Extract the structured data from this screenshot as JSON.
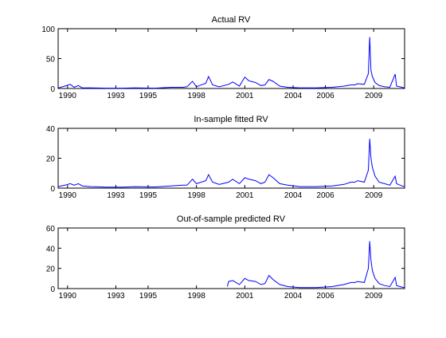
{
  "figure": {
    "background": "#ffffff"
  },
  "chart_data": [
    {
      "type": "line",
      "title": "Actual RV",
      "xlabel": "",
      "ylabel": "",
      "xlim": [
        "1989-06",
        "2010-12"
      ],
      "ylim": [
        0,
        100
      ],
      "yticks": [
        0,
        50,
        100
      ],
      "xticks": [
        "1990",
        "1993",
        "1995",
        "1998",
        "2001",
        "2004",
        "2006",
        "2009"
      ],
      "grid": false,
      "series": [
        {
          "color": "#0000ff",
          "points": [
            [
              "1989-06",
              1
            ],
            [
              "1989-11",
              4
            ],
            [
              "1990-03",
              7
            ],
            [
              "1990-06",
              2
            ],
            [
              "1990-09",
              5
            ],
            [
              "1990-12",
              1
            ],
            [
              "1991-06",
              1
            ],
            [
              "1992-06",
              0.5
            ],
            [
              "1993-06",
              0.5
            ],
            [
              "1994-03",
              1
            ],
            [
              "1995-06",
              0.5
            ],
            [
              "1996-06",
              2
            ],
            [
              "1997-03",
              2
            ],
            [
              "1997-06",
              3
            ],
            [
              "1997-10",
              12
            ],
            [
              "1998-01",
              3
            ],
            [
              "1998-08",
              9
            ],
            [
              "1998-10",
              20
            ],
            [
              "1999-01",
              6
            ],
            [
              "1999-06",
              3
            ],
            [
              "2000-01",
              7
            ],
            [
              "2000-04",
              11
            ],
            [
              "2000-09",
              4
            ],
            [
              "2001-01",
              19
            ],
            [
              "2001-04",
              13
            ],
            [
              "2001-09",
              10
            ],
            [
              "2002-01",
              5
            ],
            [
              "2002-04",
              6
            ],
            [
              "2002-07",
              15
            ],
            [
              "2002-10",
              12
            ],
            [
              "2003-03",
              4
            ],
            [
              "2003-09",
              2
            ],
            [
              "2004-06",
              1
            ],
            [
              "2005-06",
              1
            ],
            [
              "2006-06",
              2
            ],
            [
              "2007-03",
              4
            ],
            [
              "2007-08",
              6
            ],
            [
              "2007-11",
              6
            ],
            [
              "2008-01",
              8
            ],
            [
              "2008-06",
              7
            ],
            [
              "2008-09",
              25
            ],
            [
              "2008-10",
              86
            ],
            [
              "2008-11",
              30
            ],
            [
              "2008-12",
              20
            ],
            [
              "2009-02",
              10
            ],
            [
              "2009-05",
              5
            ],
            [
              "2009-09",
              3
            ],
            [
              "2010-01",
              2
            ],
            [
              "2010-05",
              24
            ],
            [
              "2010-06",
              4
            ],
            [
              "2010-10",
              2
            ],
            [
              "2010-12",
              1
            ]
          ]
        }
      ]
    },
    {
      "type": "line",
      "title": "In-sample fitted RV",
      "xlabel": "",
      "ylabel": "",
      "xlim": [
        "1989-06",
        "2010-12"
      ],
      "ylim": [
        0,
        40
      ],
      "yticks": [
        0,
        20,
        40
      ],
      "xticks": [
        "1990",
        "1993",
        "1995",
        "1998",
        "2001",
        "2004",
        "2006",
        "2009"
      ],
      "grid": false,
      "series": [
        {
          "color": "#0000ff",
          "points": [
            [
              "1989-06",
              1
            ],
            [
              "1989-11",
              2
            ],
            [
              "1990-03",
              3
            ],
            [
              "1990-06",
              2
            ],
            [
              "1990-09",
              3
            ],
            [
              "1990-12",
              1.5
            ],
            [
              "1991-06",
              1
            ],
            [
              "1992-06",
              0.7
            ],
            [
              "1993-06",
              0.7
            ],
            [
              "1994-03",
              1
            ],
            [
              "1995-06",
              0.8
            ],
            [
              "1996-06",
              1.5
            ],
            [
              "1997-03",
              2
            ],
            [
              "1997-06",
              2
            ],
            [
              "1997-10",
              6
            ],
            [
              "1998-01",
              3
            ],
            [
              "1998-08",
              5
            ],
            [
              "1998-10",
              9
            ],
            [
              "1999-01",
              4
            ],
            [
              "1999-06",
              2.5
            ],
            [
              "2000-01",
              4
            ],
            [
              "2000-04",
              6
            ],
            [
              "2000-09",
              3
            ],
            [
              "2001-01",
              7
            ],
            [
              "2001-04",
              6
            ],
            [
              "2001-09",
              5
            ],
            [
              "2002-01",
              3
            ],
            [
              "2002-04",
              4
            ],
            [
              "2002-07",
              9
            ],
            [
              "2002-10",
              7
            ],
            [
              "2003-03",
              3
            ],
            [
              "2003-09",
              2
            ],
            [
              "2004-06",
              1
            ],
            [
              "2005-06",
              1
            ],
            [
              "2006-06",
              1.5
            ],
            [
              "2007-03",
              2.5
            ],
            [
              "2007-08",
              4
            ],
            [
              "2007-11",
              4
            ],
            [
              "2008-01",
              5
            ],
            [
              "2008-06",
              4
            ],
            [
              "2008-09",
              12
            ],
            [
              "2008-10",
              33
            ],
            [
              "2008-11",
              20
            ],
            [
              "2008-12",
              14
            ],
            [
              "2009-02",
              8
            ],
            [
              "2009-05",
              4
            ],
            [
              "2009-09",
              3
            ],
            [
              "2010-01",
              2
            ],
            [
              "2010-05",
              8
            ],
            [
              "2010-06",
              3
            ],
            [
              "2010-10",
              1.5
            ],
            [
              "2010-12",
              1
            ]
          ]
        }
      ]
    },
    {
      "type": "line",
      "title": "Out-of-sample predicted RV",
      "xlabel": "",
      "ylabel": "",
      "xlim": [
        "1989-06",
        "2010-12"
      ],
      "ylim": [
        0,
        60
      ],
      "yticks": [
        0,
        20,
        40,
        60
      ],
      "xticks": [
        "1990",
        "1993",
        "1995",
        "1998",
        "2001",
        "2004",
        "2006",
        "2009"
      ],
      "grid": false,
      "series": [
        {
          "color": "#0000ff",
          "points": [
            [
              "1999-12",
              2
            ],
            [
              "2000-01",
              7
            ],
            [
              "2000-04",
              8
            ],
            [
              "2000-09",
              4
            ],
            [
              "2001-01",
              10
            ],
            [
              "2001-04",
              8
            ],
            [
              "2001-09",
              7
            ],
            [
              "2002-01",
              4
            ],
            [
              "2002-04",
              5
            ],
            [
              "2002-07",
              13
            ],
            [
              "2002-10",
              9
            ],
            [
              "2003-03",
              4
            ],
            [
              "2003-09",
              2
            ],
            [
              "2004-06",
              1
            ],
            [
              "2005-06",
              1
            ],
            [
              "2006-06",
              2
            ],
            [
              "2007-03",
              4
            ],
            [
              "2007-08",
              6
            ],
            [
              "2007-11",
              6
            ],
            [
              "2008-01",
              7
            ],
            [
              "2008-06",
              6
            ],
            [
              "2008-09",
              20
            ],
            [
              "2008-10",
              47
            ],
            [
              "2008-11",
              28
            ],
            [
              "2008-12",
              18
            ],
            [
              "2009-02",
              10
            ],
            [
              "2009-05",
              5
            ],
            [
              "2009-09",
              3
            ],
            [
              "2010-01",
              2
            ],
            [
              "2010-05",
              11
            ],
            [
              "2010-06",
              3
            ],
            [
              "2010-10",
              1.5
            ],
            [
              "2010-12",
              1
            ]
          ]
        }
      ]
    }
  ]
}
